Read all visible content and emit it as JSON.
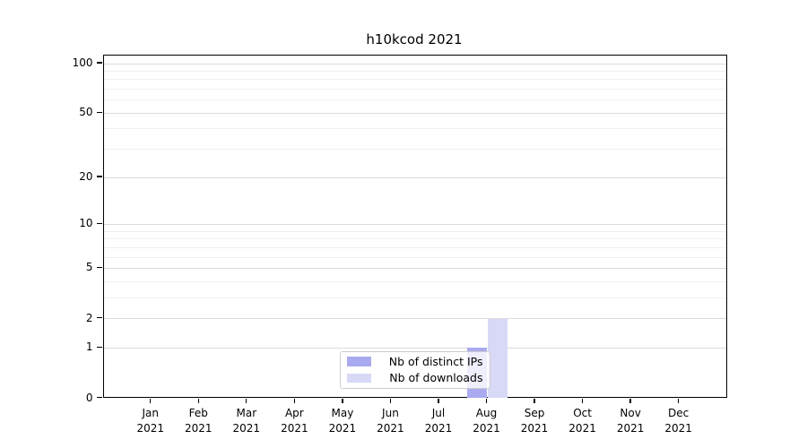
{
  "figure": {
    "background": "#ffffff"
  },
  "chart_data": {
    "type": "bar",
    "title": "h10kcod 2021",
    "x_categories": [
      "Jan",
      "Feb",
      "Mar",
      "Apr",
      "May",
      "Jun",
      "Jul",
      "Aug",
      "Sep",
      "Oct",
      "Nov",
      "Dec"
    ],
    "x_year": "2021",
    "series": [
      {
        "name": "Nb of distinct IPs",
        "color": "#aaaaf0",
        "values": [
          0,
          0,
          0,
          0,
          0,
          0,
          0,
          1,
          0,
          0,
          0,
          0
        ]
      },
      {
        "name": "Nb of downloads",
        "color": "#d8d8f7",
        "values": [
          0,
          0,
          0,
          0,
          0,
          0,
          0,
          2,
          0,
          0,
          0,
          0
        ]
      }
    ],
    "y_scale": "log1p",
    "ylim": [
      0,
      100
    ],
    "y_tick_values": [
      0,
      1,
      2,
      5,
      10,
      20,
      50,
      100
    ],
    "y_major_gridlines": [
      1,
      2,
      5,
      10,
      20,
      50,
      100
    ],
    "y_minor_gridlines": [
      3,
      4,
      6,
      7,
      8,
      9,
      30,
      40,
      60,
      70,
      80,
      90
    ],
    "grid": true,
    "legend": {
      "position": "lower center",
      "entries": [
        "Nb of distinct IPs",
        "Nb of downloads"
      ]
    },
    "colors": {
      "major_grid": "#dbdbdb",
      "minor_grid": "#f0f0f0",
      "spine": "#000000",
      "distinct_ips_bar": "#aaaaf0",
      "downloads_bar": "#d8d8f7"
    }
  }
}
